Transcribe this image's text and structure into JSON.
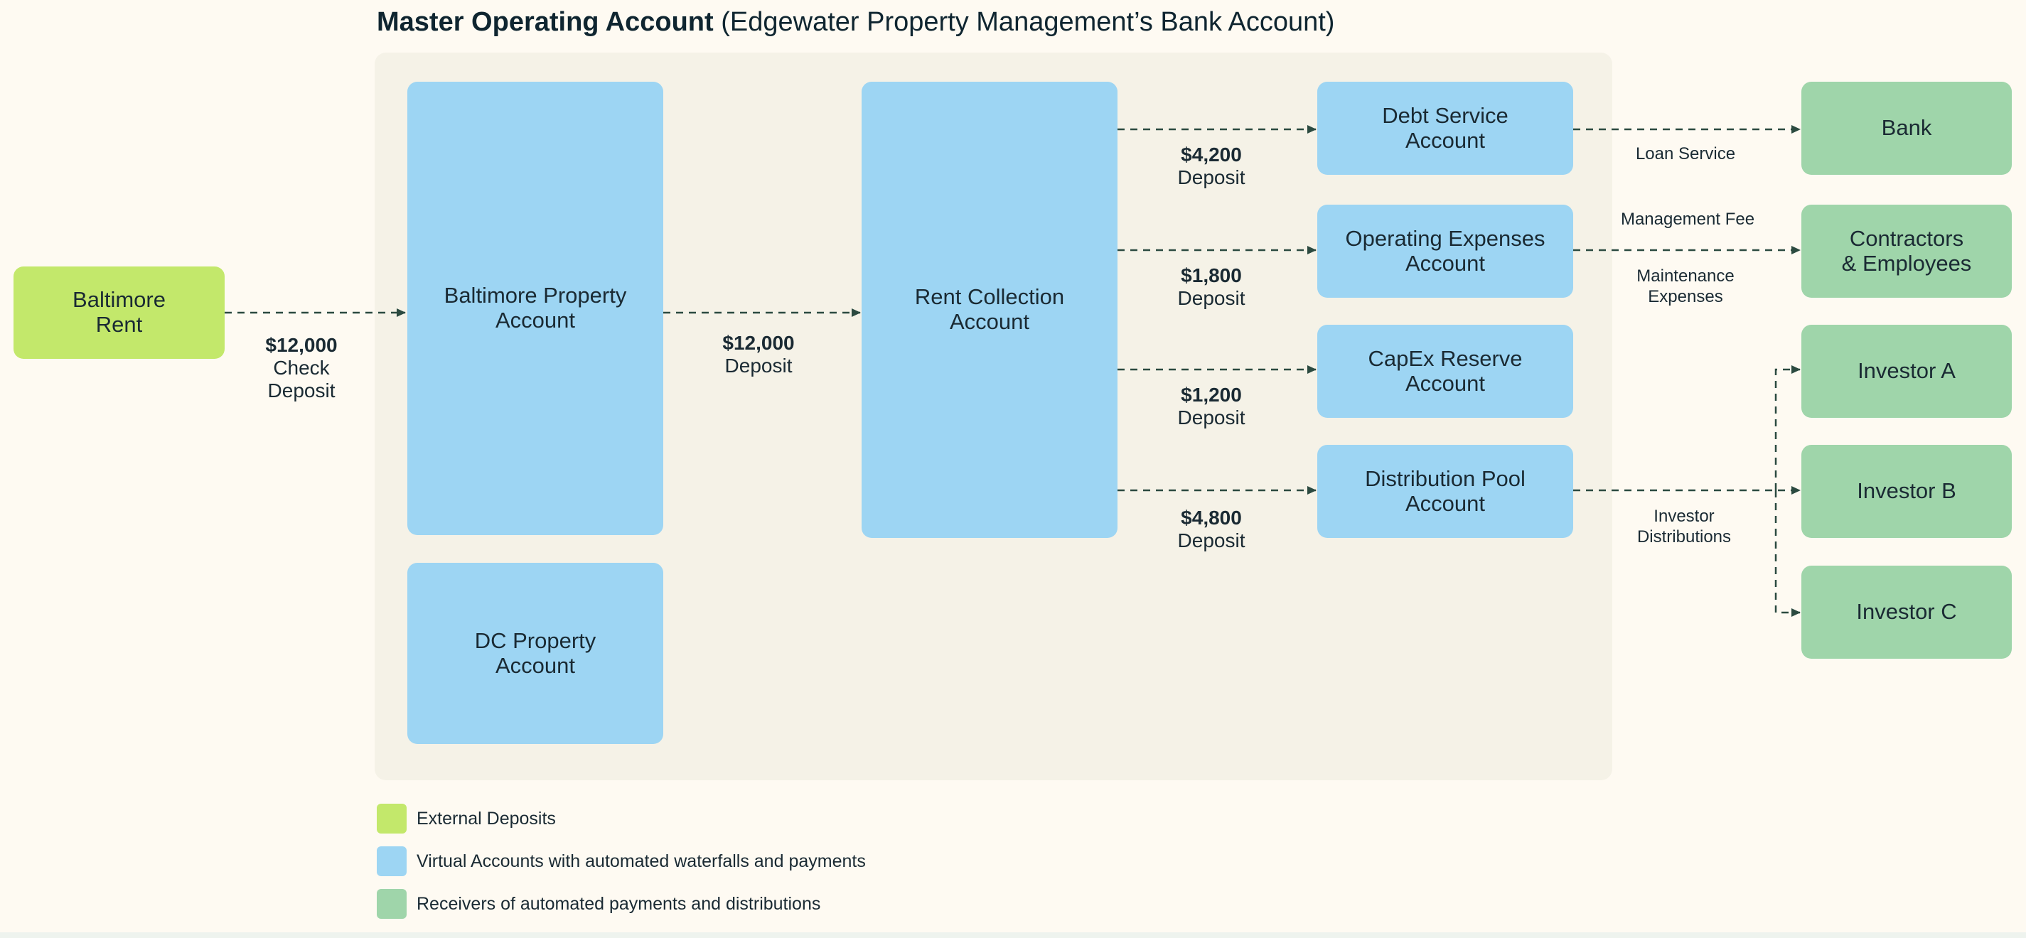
{
  "title": {
    "bold": "Master Operating Account",
    "rest": " (Edgewater Property Management’s Bank Account)"
  },
  "colors": {
    "external": "#c3e86b",
    "virtual": "#9dd5f3",
    "receiver": "#9fd5aa",
    "panel": "#f5f2e7",
    "arrow": "#2b4a40"
  },
  "nodes": {
    "baltimore_rent": "Baltimore\nRent",
    "baltimore_property": "Baltimore Property\nAccount",
    "dc_property": "DC Property\nAccount",
    "rent_collection": "Rent Collection\nAccount",
    "debt_service": "Debt Service\nAccount",
    "operating_expenses": "Operating Expenses\nAccount",
    "capex_reserve": "CapEx Reserve\nAccount",
    "distribution_pool": "Distribution Pool\nAccount",
    "bank": "Bank",
    "contractors": "Contractors\n& Employees",
    "investor_a": "Investor A",
    "investor_b": "Investor B",
    "investor_c": "Investor C"
  },
  "flows": {
    "check_deposit": {
      "amount": "$12,000",
      "label": "Check\nDeposit"
    },
    "rent_deposit": {
      "amount": "$12,000",
      "label": "Deposit"
    },
    "debt_deposit": {
      "amount": "$4,200",
      "label": "Deposit"
    },
    "opex_deposit": {
      "amount": "$1,800",
      "label": "Deposit"
    },
    "capex_deposit": {
      "amount": "$1,200",
      "label": "Deposit"
    },
    "distribution_deposit": {
      "amount": "$4,800",
      "label": "Deposit"
    },
    "loan_service": "Loan Service",
    "management_fee": "Management Fee",
    "maintenance": "Maintenance\nExpenses",
    "investor_distributions": "Investor\nDistributions"
  },
  "legend": [
    {
      "label": "External Deposits",
      "color": "#c3e86b"
    },
    {
      "label": "Virtual Accounts with automated waterfalls and payments",
      "color": "#9dd5f3"
    },
    {
      "label": "Receivers of automated payments and distributions",
      "color": "#9fd5aa"
    }
  ]
}
